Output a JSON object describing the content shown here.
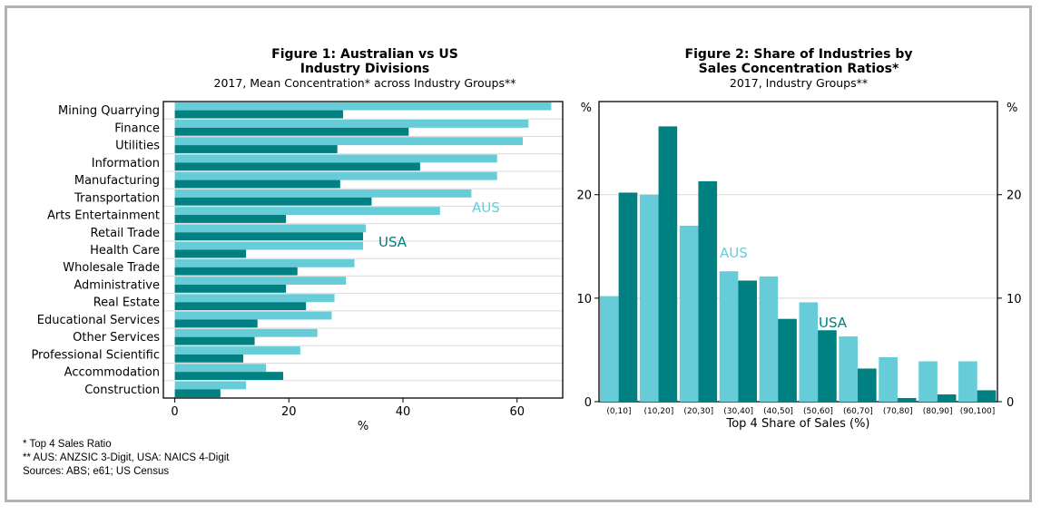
{
  "figure1": {
    "title_line1": "Figure 1: Australian vs US",
    "title_line2": "Industry Divisions",
    "subtitle": "2017, Mean Concentration* across Industry Groups**",
    "xlabel": "%"
  },
  "figure2": {
    "title_line1": "Figure 2: Share of Industries by",
    "title_line2": "Sales Concentration Ratios*",
    "subtitle": "2017, Industry Groups**",
    "xlabel": "Top 4 Share of Sales (%)",
    "left_unit": "%",
    "right_unit": "%"
  },
  "notes": [
    "* Top 4 Sales Ratio",
    "** AUS: ANZSIC 3-Digit, USA: NAICS 4-Digit",
    "Sources: ABS; e61; US Census"
  ],
  "colors": {
    "aus": "#66cdd8",
    "usa": "#008080",
    "grid": "#d9d9d9"
  },
  "chart_data": [
    {
      "type": "bar",
      "orientation": "horizontal",
      "title": "Figure 1: Australian vs US Industry Divisions",
      "subtitle": "2017, Mean Concentration* across Industry Groups**",
      "xlabel": "%",
      "xlim": [
        -2,
        68
      ],
      "xticks": [
        0,
        20,
        40,
        60
      ],
      "categories": [
        "Mining Quarrying",
        "Finance",
        "Utilities",
        "Information",
        "Manufacturing",
        "Transportation",
        "Arts Entertainment",
        "Retail Trade",
        "Health Care",
        "Wholesale Trade",
        "Administrative",
        "Real Estate",
        "Educational Services",
        "Other Services",
        "Professional Scientific",
        "Accommodation",
        "Construction"
      ],
      "series": [
        {
          "name": "AUS",
          "values": [
            66,
            62,
            61,
            56.5,
            56.5,
            52,
            46.5,
            33.5,
            33,
            31.5,
            30,
            28,
            27.5,
            25,
            22,
            16,
            12.5
          ]
        },
        {
          "name": "USA",
          "values": [
            29.5,
            41,
            28.5,
            43,
            29,
            34.5,
            19.5,
            33,
            12.5,
            21.5,
            19.5,
            23,
            14.5,
            14,
            12,
            19,
            8
          ]
        }
      ],
      "grid": true
    },
    {
      "type": "bar",
      "title": "Figure 2: Share of Industries by Sales Concentration Ratios*",
      "subtitle": "2017, Industry Groups**",
      "xlabel": "Top 4 Share of Sales (%)",
      "ylabel": "%",
      "ylim": [
        0,
        29
      ],
      "yticks": [
        0,
        10,
        20
      ],
      "categories": [
        "(0,10]",
        "(10,20]",
        "(20,30]",
        "(30,40]",
        "(40,50]",
        "(50,60]",
        "(60,70]",
        "(70,80]",
        "(80,90]",
        "(90,100]"
      ],
      "series": [
        {
          "name": "AUS",
          "values": [
            10.2,
            20,
            17,
            12.6,
            12.1,
            9.6,
            6.3,
            4.3,
            3.9,
            3.9
          ]
        },
        {
          "name": "USA",
          "values": [
            20.2,
            26.6,
            21.3,
            11.7,
            8,
            6.9,
            3.2,
            0.35,
            0.7,
            1.1
          ]
        }
      ],
      "grid": true
    }
  ]
}
